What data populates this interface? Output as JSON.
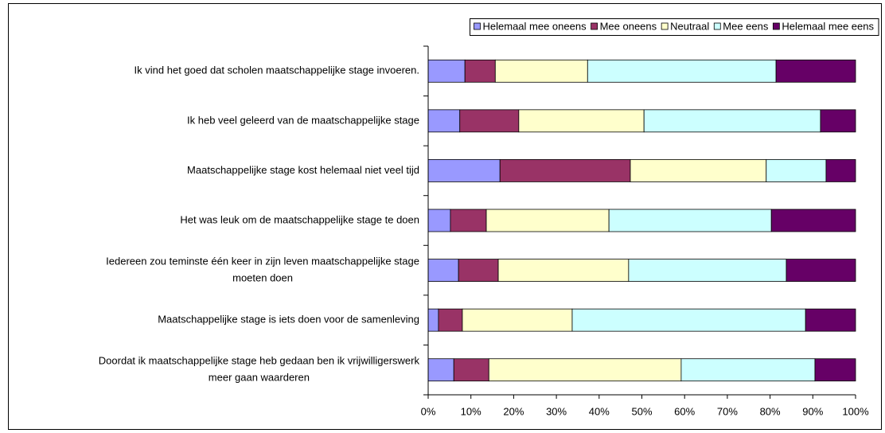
{
  "chart_data": {
    "type": "stacked-barh",
    "categories": [
      [
        "Ik vind het goed dat scholen maatschappelijke stage invoeren."
      ],
      [
        "Ik heb veel geleerd van de maatschappelijke stage"
      ],
      [
        "Maatschappelijke stage kost helemaal niet veel tijd"
      ],
      [
        "Het was leuk om de maatschappelijke stage te doen"
      ],
      [
        "Iedereen zou teminste één keer in zijn leven maatschappelijke stage",
        "moeten doen"
      ],
      [
        "Maatschappelijke stage is iets doen voor de samenleving"
      ],
      [
        "Doordat ik maatschappelijke stage heb gedaan ben ik vrijwilligerswerk",
        "meer gaan waarderen"
      ]
    ],
    "series": [
      {
        "name": "Helemaal mee oneens",
        "color": "#9999ff",
        "values": [
          8.6,
          7.4,
          16.8,
          5.2,
          7.1,
          2.4,
          6.0
        ]
      },
      {
        "name": "Mee oneens",
        "color": "#993366",
        "values": [
          7.1,
          13.8,
          30.5,
          8.4,
          9.3,
          5.6,
          8.2
        ]
      },
      {
        "name": "Neutraal",
        "color": "#ffffcc",
        "values": [
          21.6,
          29.3,
          31.8,
          28.7,
          30.5,
          25.7,
          45.0
        ]
      },
      {
        "name": "Mee eens",
        "color": "#ccffff",
        "values": [
          44.1,
          41.3,
          14.0,
          38.0,
          36.9,
          54.6,
          31.3
        ]
      },
      {
        "name": "Helemaal mee eens",
        "color": "#660066",
        "values": [
          18.6,
          8.2,
          6.9,
          19.7,
          16.2,
          11.7,
          9.5
        ]
      }
    ],
    "xlim": [
      0,
      100
    ],
    "xticks": [
      {
        "value": 0,
        "label": "0%"
      },
      {
        "value": 10,
        "label": "10%"
      },
      {
        "value": 20,
        "label": "20%"
      },
      {
        "value": 30,
        "label": "30%"
      },
      {
        "value": 40,
        "label": "40%"
      },
      {
        "value": 50,
        "label": "50%"
      },
      {
        "value": 60,
        "label": "60%"
      },
      {
        "value": 70,
        "label": "70%"
      },
      {
        "value": 80,
        "label": "80%"
      },
      {
        "value": 90,
        "label": "90%"
      },
      {
        "value": 100,
        "label": "100%"
      }
    ],
    "legend": "top-right"
  }
}
